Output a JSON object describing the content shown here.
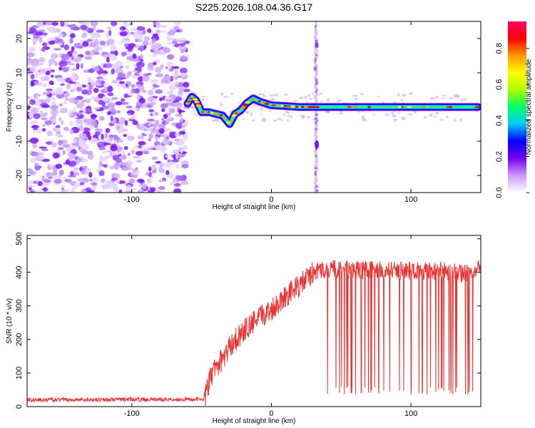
{
  "title": "S225.2026.108.04.36.G17",
  "chart_data": [
    {
      "type": "heatmap",
      "xlabel": "Height of straight line (km)",
      "ylabel": "Frequency (Hz)",
      "xlim": [
        -175,
        150
      ],
      "ylim": [
        -25,
        25
      ],
      "xticks": [
        -100,
        0,
        100
      ],
      "yticks": [
        -20,
        -10,
        0,
        10,
        20
      ],
      "colorbar": {
        "label": "Normalized spectral amplitude",
        "range": [
          0.0,
          0.95
        ],
        "ticks": [
          0.0,
          0.2,
          0.4,
          0.6,
          0.8
        ],
        "tick_labels": [
          "0.0",
          "0.2",
          "0.4",
          "0.6",
          "0.8"
        ],
        "colors": [
          "#ffffff",
          "#cc99ff",
          "#7700ee",
          "#0000ff",
          "#00ccff",
          "#00ff66",
          "#aaff00",
          "#ffff00",
          "#ff9900",
          "#ff0000",
          "#ff0066"
        ]
      },
      "noise_region_x": [
        -175,
        -60
      ],
      "signal_track": [
        {
          "x": -60,
          "y": 1.0
        },
        {
          "x": -57,
          "y": 3.0
        },
        {
          "x": -54,
          "y": 2.0
        },
        {
          "x": -50,
          "y": -1.5
        },
        {
          "x": -45,
          "y": -1.5
        },
        {
          "x": -40,
          "y": -2.0
        },
        {
          "x": -35,
          "y": -2.5
        },
        {
          "x": -30,
          "y": -5.0
        },
        {
          "x": -26,
          "y": -2.0
        },
        {
          "x": -22,
          "y": -1.0
        },
        {
          "x": -18,
          "y": 1.0
        },
        {
          "x": -13,
          "y": 2.5
        },
        {
          "x": -8,
          "y": 1.5
        },
        {
          "x": 0,
          "y": 0.5
        },
        {
          "x": 10,
          "y": 0.3
        },
        {
          "x": 20,
          "y": 0.0
        },
        {
          "x": 30,
          "y": 0.0
        },
        {
          "x": 35,
          "y": 0.0
        },
        {
          "x": 60,
          "y": 0.0
        },
        {
          "x": 90,
          "y": 0.0
        },
        {
          "x": 120,
          "y": 0.0
        },
        {
          "x": 148,
          "y": 0.0
        }
      ],
      "vertical_artifact_x": 32
    },
    {
      "type": "line",
      "color": "#ee3333",
      "xlabel": "Height of straight line (km)",
      "ylabel": "SNR (10 * v/v)",
      "xlim": [
        -175,
        150
      ],
      "ylim": [
        0,
        510
      ],
      "xticks": [
        -100,
        0,
        100
      ],
      "yticks": [
        0,
        100,
        200,
        300,
        400,
        500
      ],
      "trend": [
        {
          "x": -175,
          "y": 20
        },
        {
          "x": -48,
          "y": 22
        },
        {
          "x": -44,
          "y": 80
        },
        {
          "x": -40,
          "y": 120
        },
        {
          "x": -35,
          "y": 140
        },
        {
          "x": -28,
          "y": 190
        },
        {
          "x": -20,
          "y": 225
        },
        {
          "x": -10,
          "y": 260
        },
        {
          "x": 0,
          "y": 290
        },
        {
          "x": 10,
          "y": 330
        },
        {
          "x": 20,
          "y": 360
        },
        {
          "x": 30,
          "y": 400
        },
        {
          "x": 40,
          "y": 410
        },
        {
          "x": 80,
          "y": 405
        },
        {
          "x": 120,
          "y": 405
        },
        {
          "x": 140,
          "y": 395
        },
        {
          "x": 150,
          "y": 420
        }
      ],
      "dropout_region_x": [
        38,
        148
      ],
      "dropout_min": 35
    }
  ]
}
